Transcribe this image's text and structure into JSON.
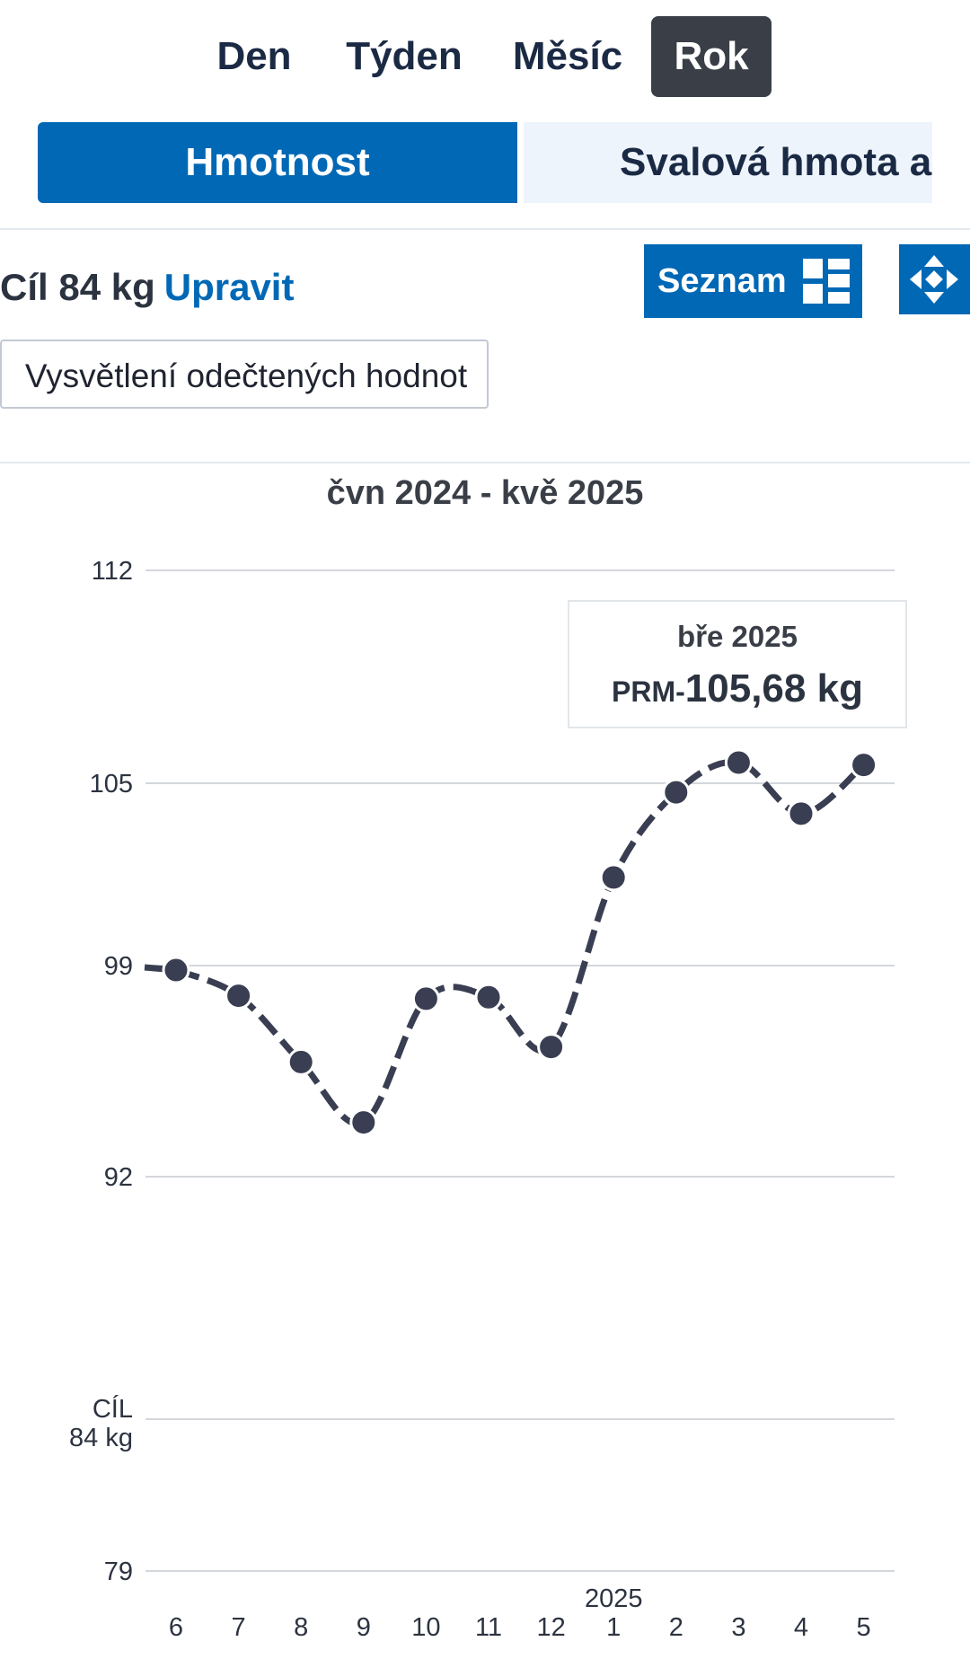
{
  "period_tabs": [
    {
      "label": "Den"
    },
    {
      "label": "Týden"
    },
    {
      "label": "Měsíc"
    },
    {
      "label": "Rok",
      "active": true
    }
  ],
  "metric_tabs": [
    {
      "label": "Hmotnost",
      "active": true
    },
    {
      "label": "Svalová hmota a tuk"
    }
  ],
  "goal": {
    "text": "Cíl 84 kg",
    "edit_label": "Upravit"
  },
  "list_button": {
    "label": "Seznam",
    "icon": "grid-view-icon"
  },
  "move_button": {
    "icon": "move-arrows-icon"
  },
  "explain_button": {
    "label": "Vysvětlení odečtených hodnot"
  },
  "colors": {
    "accent": "#0068b5",
    "active_tab": "#3a3f47",
    "line": "#3a3e52",
    "grid": "#d4d7dc"
  },
  "tooltip": {
    "date": "bře 2025",
    "prefix": "PRM-",
    "value": "105,68 kg"
  },
  "chart_data": {
    "type": "line",
    "title": "čvn 2024 - kvě 2025",
    "categories": [
      "6",
      "7",
      "8",
      "9",
      "10",
      "11",
      "12",
      "1",
      "2",
      "3",
      "4",
      "5"
    ],
    "year_label": "2025",
    "values": [
      98.85,
      98.0,
      95.8,
      93.8,
      97.9,
      97.95,
      96.3,
      101.9,
      104.7,
      105.68,
      104.0,
      105.6
    ],
    "y_ticks": [
      {
        "value": 112,
        "label": "112"
      },
      {
        "value": 105,
        "label": "105"
      },
      {
        "value": 99,
        "label": "99"
      },
      {
        "value": 92,
        "label": "92"
      },
      {
        "value": 79,
        "label": "79"
      }
    ],
    "goal": {
      "value": 84,
      "label_top": "CÍL",
      "label_bottom": "84 kg"
    },
    "ylim": [
      79,
      112
    ],
    "y_scale": "piecewise",
    "highlighted_index": 9,
    "grid": true
  }
}
